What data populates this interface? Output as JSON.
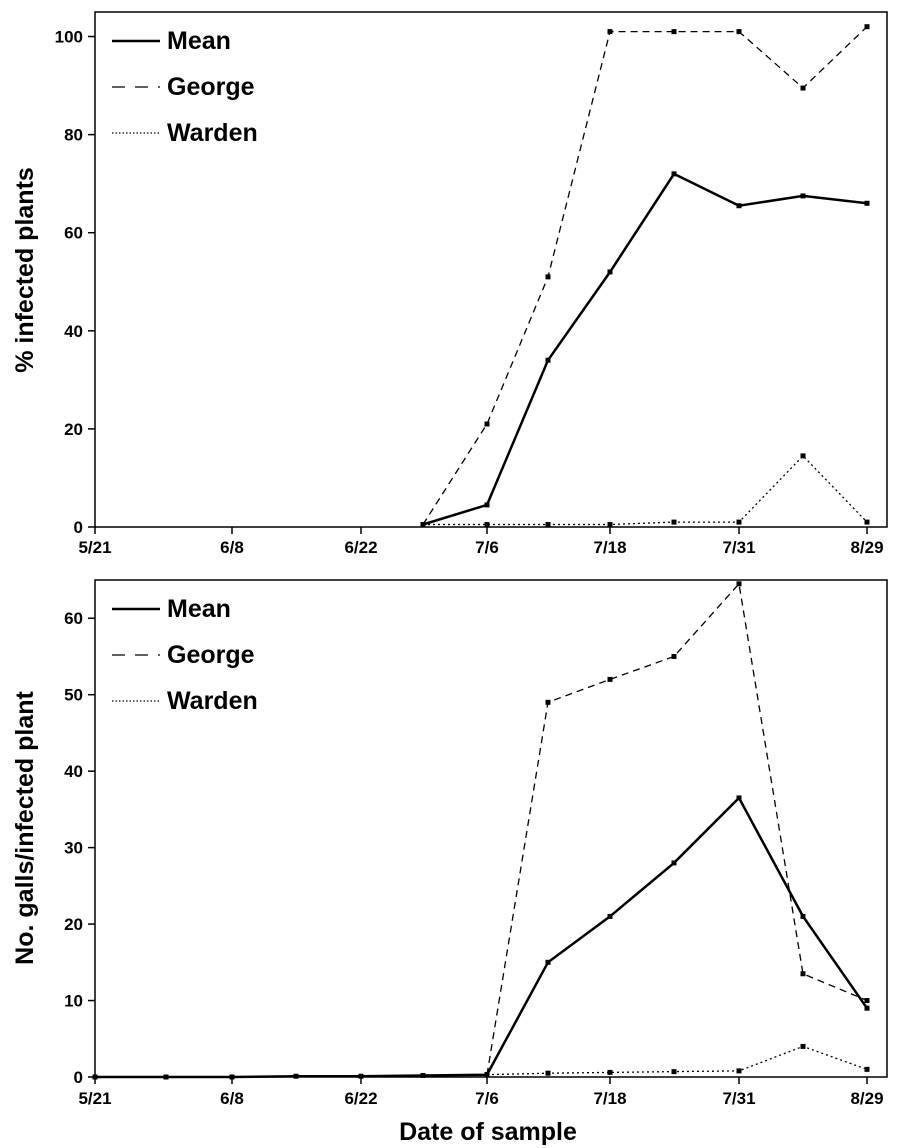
{
  "chart_data": [
    {
      "type": "line",
      "ylabel": "% infected plants",
      "xlabel": "",
      "ylim": [
        0,
        105
      ],
      "yticks": [
        0,
        20,
        40,
        60,
        80,
        100
      ],
      "xtick_labels": [
        "5/21",
        "6/8",
        "6/22",
        "7/6",
        "7/18",
        "7/31",
        "8/29"
      ],
      "legend": "top-left",
      "series": [
        {
          "name": "Mean",
          "style": "solid",
          "x": [
            "7/1",
            "7/6",
            "7/12",
            "7/18",
            "7/24",
            "7/31",
            "8/6",
            "8/29"
          ],
          "values": [
            0.5,
            4.5,
            34,
            52,
            72,
            65.5,
            67.5,
            66
          ]
        },
        {
          "name": "George",
          "style": "dashed",
          "x": [
            "7/1",
            "7/6",
            "7/12",
            "7/18",
            "7/24",
            "7/31",
            "8/6",
            "8/29"
          ],
          "values": [
            0.5,
            21,
            51,
            101,
            101,
            101,
            89.5,
            102
          ]
        },
        {
          "name": "Warden",
          "style": "dotted",
          "x": [
            "7/1",
            "7/6",
            "7/12",
            "7/18",
            "7/24",
            "7/31",
            "8/6",
            "8/29"
          ],
          "values": [
            0.5,
            0.5,
            0.5,
            0.5,
            1,
            1,
            14.5,
            1
          ]
        }
      ]
    },
    {
      "type": "line",
      "ylabel": "No. galls/infected plant",
      "xlabel": "Date of sample",
      "ylim": [
        0,
        65
      ],
      "yticks": [
        0,
        10,
        20,
        30,
        40,
        50,
        60
      ],
      "xtick_labels": [
        "5/21",
        "6/8",
        "6/22",
        "7/6",
        "7/18",
        "7/31",
        "8/29"
      ],
      "legend": "top-left",
      "series": [
        {
          "name": "Mean",
          "style": "solid",
          "x": [
            "5/21",
            "5/28",
            "6/8",
            "6/15",
            "6/22",
            "6/29",
            "7/6",
            "7/12",
            "7/18",
            "7/24",
            "7/31",
            "8/6",
            "8/29"
          ],
          "values": [
            0,
            0,
            0,
            0.1,
            0.1,
            0.2,
            0.3,
            15,
            21,
            28,
            36.5,
            21,
            9
          ]
        },
        {
          "name": "George",
          "style": "dashed",
          "x": [
            "7/6",
            "7/12",
            "7/18",
            "7/24",
            "7/31",
            "8/6",
            "8/29"
          ],
          "values": [
            0.3,
            49,
            52,
            55,
            64.5,
            13.5,
            10
          ]
        },
        {
          "name": "Warden",
          "style": "dotted",
          "x": [
            "7/6",
            "7/12",
            "7/18",
            "7/24",
            "7/31",
            "8/6",
            "8/29"
          ],
          "values": [
            0.3,
            0.5,
            0.6,
            0.7,
            0.8,
            4,
            1
          ]
        }
      ]
    }
  ]
}
